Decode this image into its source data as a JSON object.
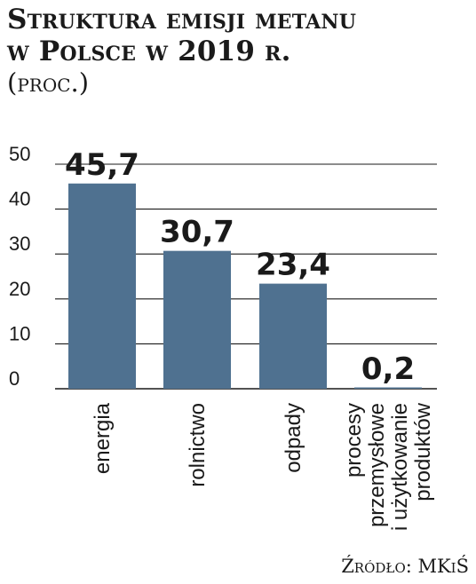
{
  "header": {
    "title_line1": "Struktura emisji metanu",
    "title_line2": "w Polsce w 2019 r.",
    "subtitle": "(proc.)"
  },
  "footer": {
    "source": "Źródło: MKiŚ"
  },
  "colors": {
    "bar": "#4f7190",
    "grid": "#1a1a1a",
    "text": "#1a1a1a"
  },
  "chart_data": {
    "type": "bar",
    "title": "Struktura emisji metanu w Polsce w 2019 r.",
    "subtitle": "(proc.)",
    "categories": [
      [
        "energia"
      ],
      [
        "rolnictwo"
      ],
      [
        "odpady"
      ],
      [
        "procesy",
        "przemysłowe",
        "i użytkowanie",
        "produktów"
      ]
    ],
    "values": [
      45.7,
      30.7,
      23.4,
      0.2
    ],
    "value_labels": [
      "45,7",
      "30,7",
      "23,4",
      "0,2"
    ],
    "ylim": [
      0,
      50
    ],
    "yticks": [
      0,
      10,
      20,
      30,
      40,
      50
    ],
    "grid": true,
    "xlabel": "",
    "ylabel": "",
    "legend": "none"
  }
}
